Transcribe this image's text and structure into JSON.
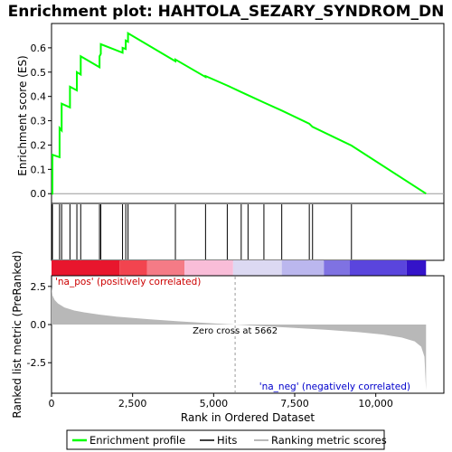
{
  "chart_data": {
    "type": "line",
    "title": "Enrichment plot: HAHTOLA_SEZARY_SYNDROM_DN",
    "xlabel": "Rank in Ordered Dataset",
    "xlim": [
      0,
      12100
    ],
    "x_ticks": [
      0,
      2500,
      5000,
      7500,
      10000
    ],
    "x_tick_labels": [
      "0",
      "2,500",
      "5,000",
      "7,500",
      "10,000"
    ],
    "es_panel": {
      "ylabel": "Enrichment score (ES)",
      "ylim": [
        -0.04,
        0.7
      ],
      "y_ticks": [
        0.0,
        0.1,
        0.2,
        0.3,
        0.4,
        0.5,
        0.6
      ],
      "y_tick_labels": [
        "0.0",
        "0.1",
        "0.2",
        "0.3",
        "0.4",
        "0.5",
        "0.6"
      ],
      "series": [
        {
          "name": "Enrichment profile",
          "color": "#00ff00",
          "x": [
            0,
            28,
            28,
            248,
            248,
            312,
            312,
            568,
            568,
            782,
            782,
            900,
            900,
            1480,
            1480,
            1520,
            1520,
            2190,
            2190,
            2290,
            2290,
            2360,
            2360,
            3820,
            3820,
            4750,
            4750,
            5420,
            5420,
            5850,
            5850,
            6060,
            6060,
            6550,
            6550,
            7100,
            7100,
            7950,
            7950,
            8050,
            8050,
            9250,
            9250,
            11550
          ],
          "y": [
            0.0,
            0.0,
            0.16,
            0.15,
            0.27,
            0.26,
            0.37,
            0.355,
            0.44,
            0.425,
            0.5,
            0.49,
            0.565,
            0.52,
            0.565,
            0.575,
            0.615,
            0.58,
            0.6,
            0.595,
            0.63,
            0.625,
            0.66,
            0.545,
            0.552,
            0.48,
            0.484,
            0.445,
            0.445,
            0.418,
            0.418,
            0.405,
            0.405,
            0.375,
            0.375,
            0.342,
            0.342,
            0.288,
            0.288,
            0.275,
            0.275,
            0.198,
            0.198,
            0.0
          ]
        }
      ]
    },
    "hits_panel": {
      "hit_positions": [
        28,
        248,
        312,
        568,
        782,
        900,
        1480,
        1520,
        2190,
        2290,
        2360,
        3820,
        4750,
        5420,
        5850,
        6060,
        6550,
        7100,
        7950,
        8050,
        9250
      ]
    },
    "heatmap_bar": {
      "segments": [
        {
          "from": 0,
          "to": 2100,
          "color": "#e8162d"
        },
        {
          "from": 2100,
          "to": 2950,
          "color": "#f2444f"
        },
        {
          "from": 2950,
          "to": 4100,
          "color": "#f57b86"
        },
        {
          "from": 4100,
          "to": 5600,
          "color": "#f9bdd8"
        },
        {
          "from": 5600,
          "to": 7100,
          "color": "#dcd9f2"
        },
        {
          "from": 7100,
          "to": 8400,
          "color": "#bbb7ee"
        },
        {
          "from": 8400,
          "to": 9200,
          "color": "#7f72e2"
        },
        {
          "from": 9200,
          "to": 10950,
          "color": "#5a45dd"
        },
        {
          "from": 10950,
          "to": 11550,
          "color": "#3413c9"
        }
      ]
    },
    "metric_panel": {
      "ylabel": "Ranked list metric (PreRanked)",
      "ylim": [
        -4.5,
        3.2
      ],
      "y_ticks": [
        2.5,
        0.0,
        -2.5
      ],
      "y_tick_labels": [
        "2.5",
        "0.0",
        "-2.5"
      ],
      "profile": {
        "x": [
          0,
          30,
          100,
          200,
          400,
          700,
          1000,
          1500,
          2000,
          3000,
          4000,
          5000,
          5662,
          6500,
          7500,
          8500,
          9500,
          10200,
          10800,
          11200,
          11400,
          11500,
          11550
        ],
        "y": [
          2.45,
          1.9,
          1.6,
          1.38,
          1.12,
          0.92,
          0.8,
          0.65,
          0.52,
          0.35,
          0.2,
          0.08,
          0.0,
          -0.1,
          -0.22,
          -0.35,
          -0.5,
          -0.65,
          -0.85,
          -1.1,
          -1.45,
          -2.1,
          -4.3
        ],
        "fill_color": "#b8b8b8"
      },
      "zero_cross": 5662,
      "zero_cross_label": "Zero cross at 5662",
      "pos_label": "'na_pos' (positively correlated)",
      "neg_label": "'na_neg' (negatively correlated)",
      "pos_color": "#cc0000",
      "neg_color": "#0000cc"
    },
    "legend": {
      "items": [
        {
          "label": "Enrichment profile",
          "color": "#00ff00"
        },
        {
          "label": "Hits",
          "color": "#000000"
        },
        {
          "label": "Ranking metric scores",
          "color": "#b8b8b8"
        }
      ]
    }
  }
}
